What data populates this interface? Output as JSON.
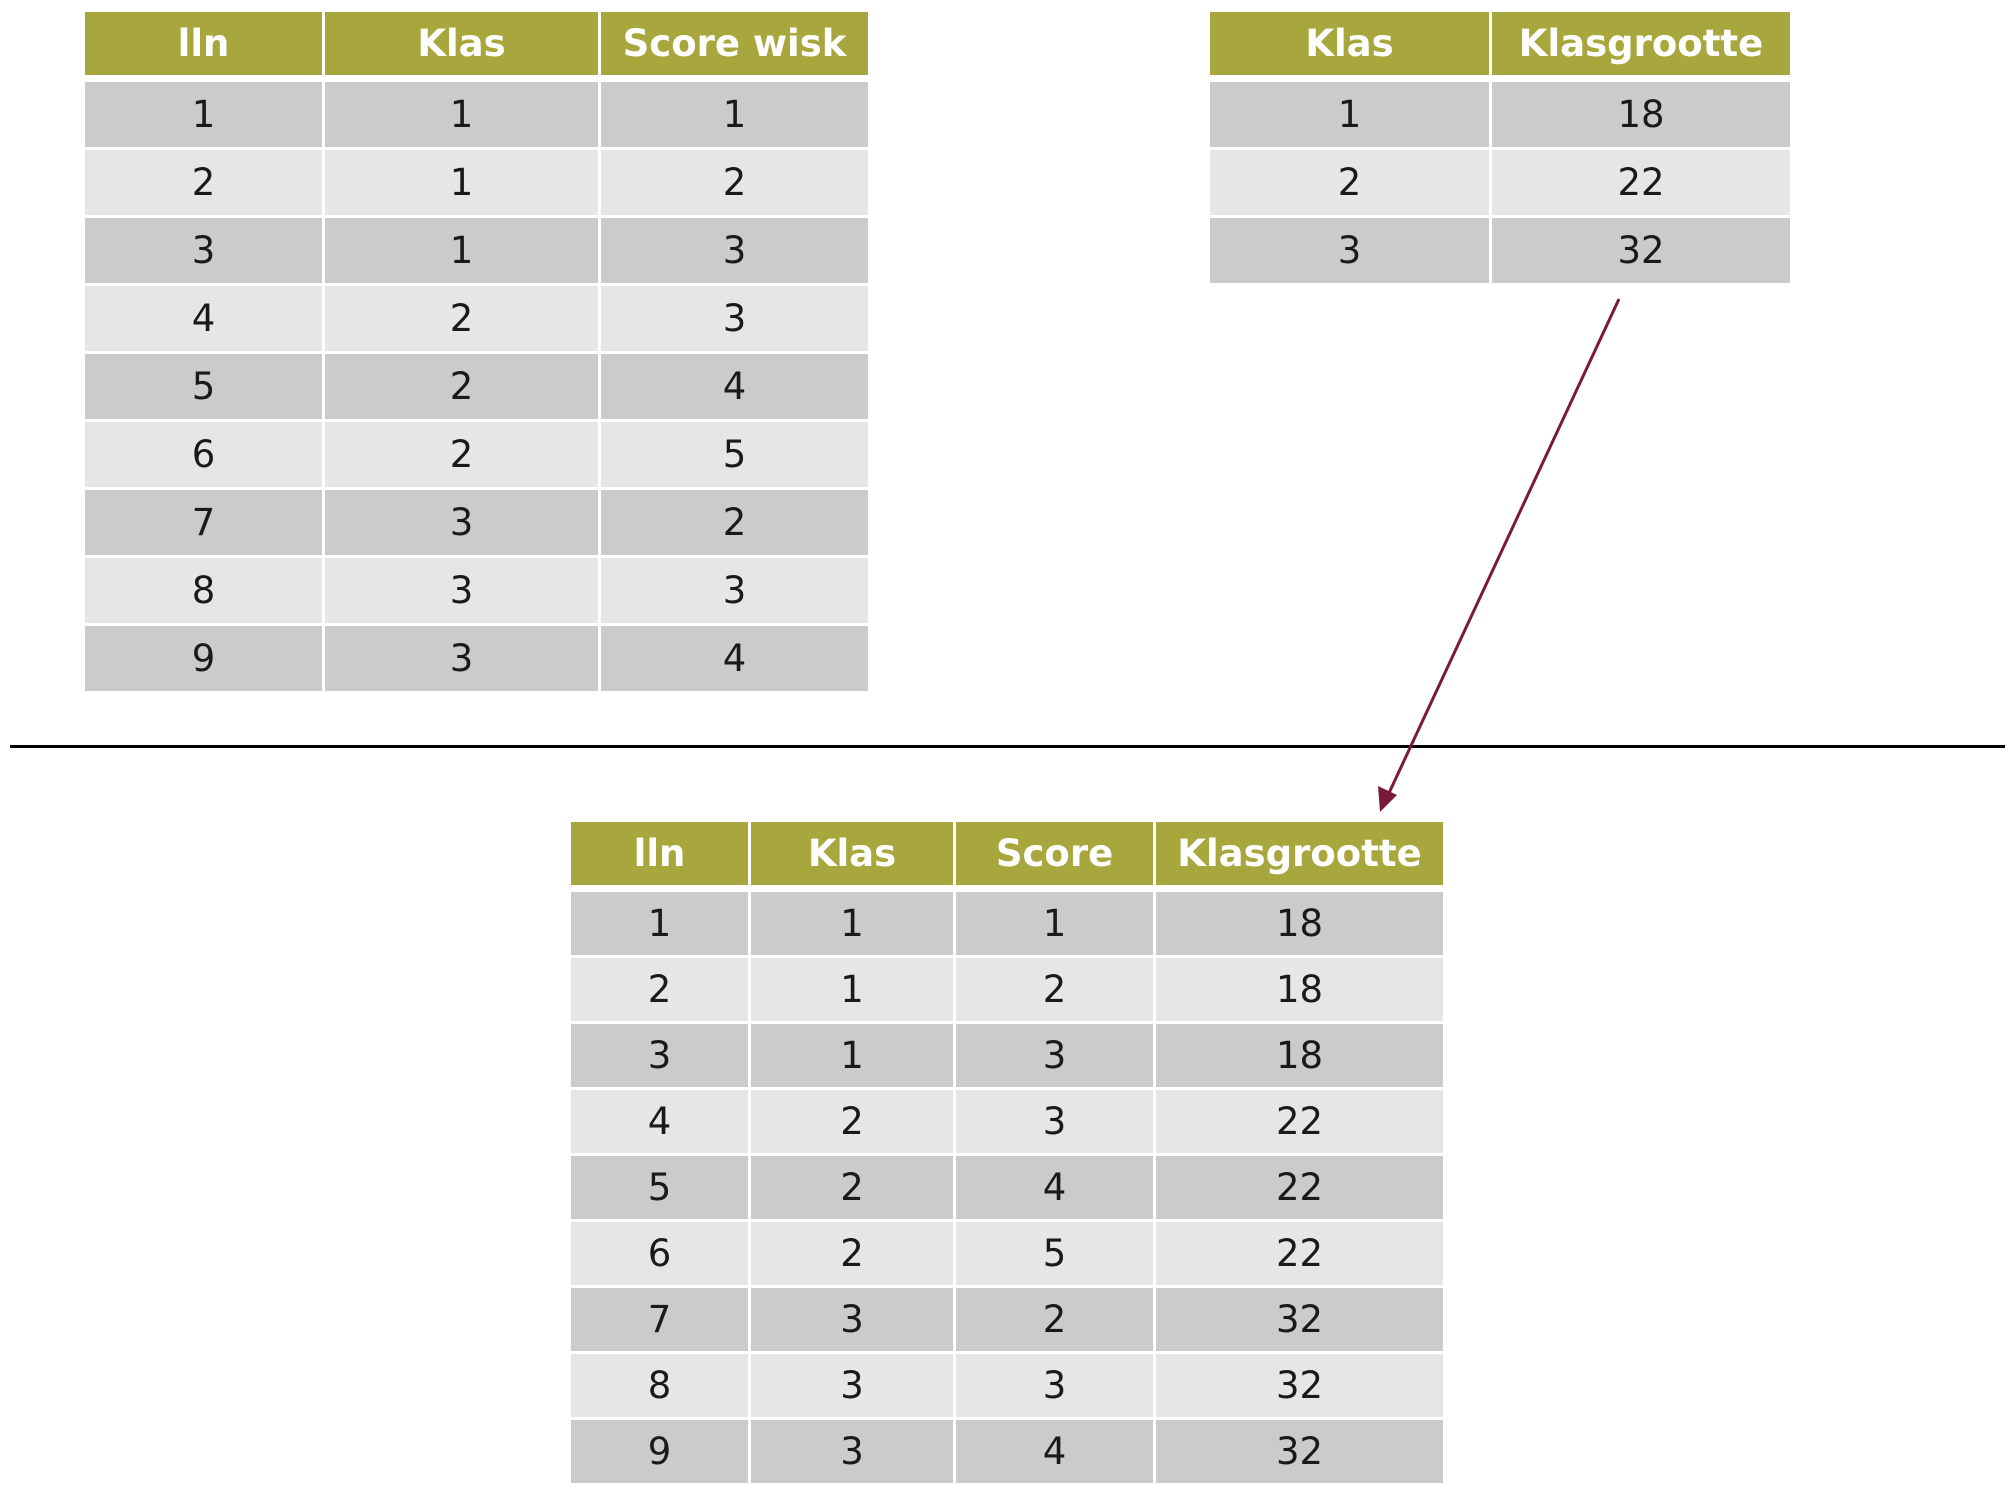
{
  "students_table": {
    "headers": [
      "lln",
      "Klas",
      "Score wisk"
    ],
    "rows": [
      [
        "1",
        "1",
        "1"
      ],
      [
        "2",
        "1",
        "2"
      ],
      [
        "3",
        "1",
        "3"
      ],
      [
        "4",
        "2",
        "3"
      ],
      [
        "5",
        "2",
        "4"
      ],
      [
        "6",
        "2",
        "5"
      ],
      [
        "7",
        "3",
        "2"
      ],
      [
        "8",
        "3",
        "3"
      ],
      [
        "9",
        "3",
        "4"
      ]
    ]
  },
  "classsize_table": {
    "headers": [
      "Klas",
      "Klasgrootte"
    ],
    "rows": [
      [
        "1",
        "18"
      ],
      [
        "2",
        "22"
      ],
      [
        "3",
        "32"
      ]
    ]
  },
  "merged_table": {
    "headers": [
      "lln",
      "Klas",
      "Score",
      "Klasgrootte"
    ],
    "rows": [
      [
        "1",
        "1",
        "1",
        "18"
      ],
      [
        "2",
        "1",
        "2",
        "18"
      ],
      [
        "3",
        "1",
        "3",
        "18"
      ],
      [
        "4",
        "2",
        "3",
        "22"
      ],
      [
        "5",
        "2",
        "4",
        "22"
      ],
      [
        "6",
        "2",
        "5",
        "22"
      ],
      [
        "7",
        "3",
        "2",
        "32"
      ],
      [
        "8",
        "3",
        "3",
        "32"
      ],
      [
        "9",
        "3",
        "4",
        "32"
      ]
    ]
  },
  "colors": {
    "header_bg": "#a8a73d",
    "header_text": "#ffffff",
    "row_dark": "#cbcbcb",
    "row_light": "#e6e6e6",
    "arrow": "#7a1a3a",
    "separator": "#000000"
  }
}
